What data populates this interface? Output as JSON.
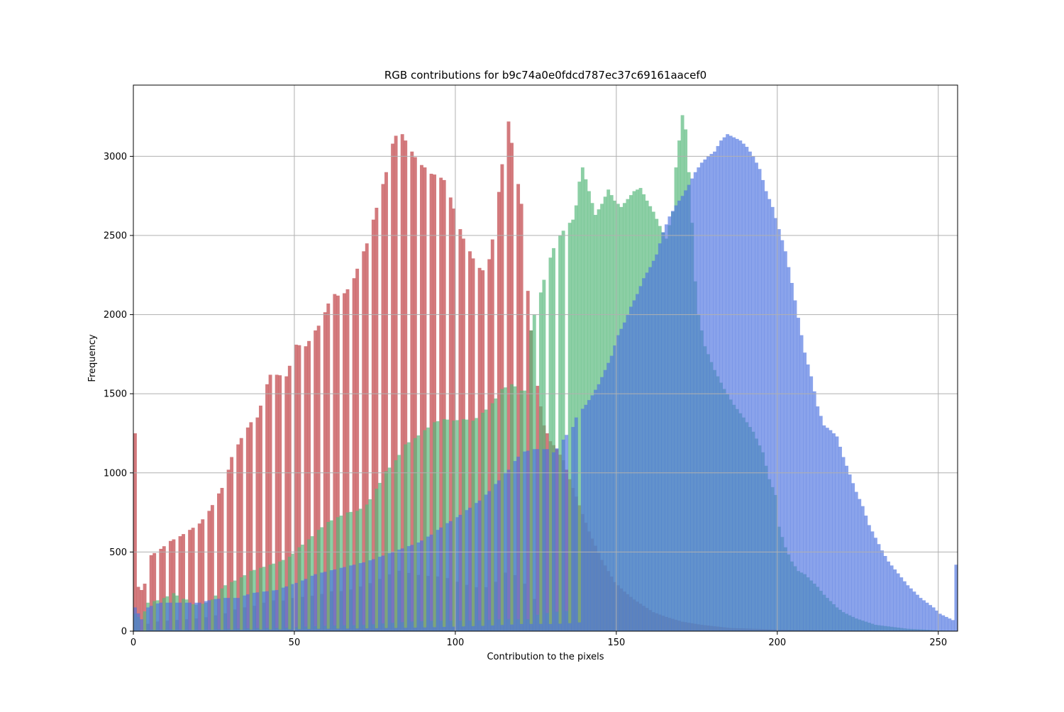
{
  "chart_data": {
    "type": "bar",
    "title": "RGB contributions for b9c74a0e0fdcd787ec37c69161aacef0",
    "xlabel": "Contribution to the pixels",
    "ylabel": "Frequency",
    "xlim": [
      0,
      256
    ],
    "ylim": [
      0,
      3450
    ],
    "xticks": [
      0,
      50,
      100,
      150,
      200,
      250
    ],
    "yticks": [
      0,
      500,
      1000,
      1500,
      2000,
      2500,
      3000
    ],
    "grid": true,
    "histogram_bins": 256,
    "series": [
      {
        "channel": "red",
        "color": "#c44e52",
        "opacity": 0.75,
        "anchors": [
          [
            0,
            1250
          ],
          [
            1,
            280
          ],
          [
            2,
            260
          ],
          [
            3,
            300
          ],
          [
            5,
            480
          ],
          [
            8,
            520
          ],
          [
            11,
            570
          ],
          [
            14,
            600
          ],
          [
            17,
            640
          ],
          [
            20,
            680
          ],
          [
            23,
            760
          ],
          [
            26,
            870
          ],
          [
            28,
            940
          ],
          [
            30,
            1100
          ],
          [
            33,
            1220
          ],
          [
            36,
            1320
          ],
          [
            38,
            1350
          ],
          [
            40,
            1500
          ],
          [
            42,
            1620
          ],
          [
            44,
            1620
          ],
          [
            47,
            1610
          ],
          [
            50,
            1810
          ],
          [
            53,
            1800
          ],
          [
            56,
            1900
          ],
          [
            58,
            1960
          ],
          [
            60,
            2070
          ],
          [
            62,
            2130
          ],
          [
            64,
            2110
          ],
          [
            66,
            2160
          ],
          [
            68,
            2230
          ],
          [
            70,
            2350
          ],
          [
            72,
            2450
          ],
          [
            74,
            2600
          ],
          [
            76,
            2750
          ],
          [
            78,
            2900
          ],
          [
            80,
            3080
          ],
          [
            82,
            3180
          ],
          [
            84,
            3100
          ],
          [
            86,
            3030
          ],
          [
            88,
            2960
          ],
          [
            90,
            2930
          ],
          [
            92,
            2890
          ],
          [
            94,
            2880
          ],
          [
            96,
            2850
          ],
          [
            98,
            2740
          ],
          [
            100,
            2600
          ],
          [
            102,
            2480
          ],
          [
            104,
            2400
          ],
          [
            106,
            2310
          ],
          [
            108,
            2280
          ],
          [
            110,
            2350
          ],
          [
            112,
            2600
          ],
          [
            114,
            2950
          ],
          [
            116,
            3220
          ],
          [
            118,
            2950
          ],
          [
            120,
            2700
          ],
          [
            121,
            2500
          ],
          [
            122,
            2150
          ],
          [
            123,
            1900
          ],
          [
            124,
            1700
          ],
          [
            125,
            1550
          ],
          [
            126,
            1420
          ],
          [
            127,
            1300
          ],
          [
            129,
            1200
          ],
          [
            131,
            1150
          ],
          [
            133,
            1080
          ],
          [
            135,
            960
          ],
          [
            137,
            850
          ],
          [
            139,
            740
          ],
          [
            141,
            630
          ],
          [
            143,
            540
          ],
          [
            145,
            450
          ],
          [
            147,
            380
          ],
          [
            149,
            310
          ],
          [
            152,
            250
          ],
          [
            155,
            200
          ],
          [
            158,
            160
          ],
          [
            161,
            120
          ],
          [
            165,
            90
          ],
          [
            170,
            60
          ],
          [
            176,
            40
          ],
          [
            185,
            20
          ],
          [
            200,
            10
          ],
          [
            220,
            5
          ],
          [
            255,
            3
          ]
        ],
        "comb": {
          "from": 4,
          "to": 125,
          "period": 3,
          "factor": 0.12
        }
      },
      {
        "channel": "green",
        "color": "#55b87b",
        "opacity": 0.68,
        "anchors": [
          [
            0,
            110
          ],
          [
            2,
            70
          ],
          [
            4,
            180
          ],
          [
            6,
            190
          ],
          [
            8,
            200
          ],
          [
            10,
            220
          ],
          [
            12,
            240
          ],
          [
            14,
            210
          ],
          [
            16,
            200
          ],
          [
            18,
            170
          ],
          [
            20,
            165
          ],
          [
            22,
            180
          ],
          [
            24,
            200
          ],
          [
            26,
            250
          ],
          [
            28,
            290
          ],
          [
            30,
            310
          ],
          [
            33,
            340
          ],
          [
            36,
            380
          ],
          [
            39,
            400
          ],
          [
            42,
            420
          ],
          [
            45,
            440
          ],
          [
            48,
            470
          ],
          [
            51,
            530
          ],
          [
            54,
            580
          ],
          [
            57,
            640
          ],
          [
            60,
            690
          ],
          [
            63,
            720
          ],
          [
            66,
            750
          ],
          [
            69,
            760
          ],
          [
            72,
            800
          ],
          [
            75,
            900
          ],
          [
            78,
            1010
          ],
          [
            81,
            1080
          ],
          [
            84,
            1180
          ],
          [
            87,
            1220
          ],
          [
            90,
            1270
          ],
          [
            93,
            1320
          ],
          [
            96,
            1340
          ],
          [
            99,
            1330
          ],
          [
            102,
            1340
          ],
          [
            105,
            1330
          ],
          [
            108,
            1380
          ],
          [
            111,
            1440
          ],
          [
            114,
            1530
          ],
          [
            117,
            1560
          ],
          [
            120,
            1520
          ],
          [
            122,
            1520
          ],
          [
            123,
            1900
          ],
          [
            124,
            2000
          ],
          [
            126,
            2140
          ],
          [
            128,
            2300
          ],
          [
            130,
            2420
          ],
          [
            132,
            2500
          ],
          [
            134,
            2560
          ],
          [
            136,
            2600
          ],
          [
            137,
            2690
          ],
          [
            138,
            2840
          ],
          [
            139,
            2930
          ],
          [
            141,
            2780
          ],
          [
            143,
            2630
          ],
          [
            145,
            2700
          ],
          [
            147,
            2790
          ],
          [
            149,
            2720
          ],
          [
            151,
            2680
          ],
          [
            153,
            2730
          ],
          [
            155,
            2780
          ],
          [
            157,
            2800
          ],
          [
            159,
            2720
          ],
          [
            161,
            2650
          ],
          [
            163,
            2560
          ],
          [
            165,
            2480
          ],
          [
            167,
            2650
          ],
          [
            168,
            2930
          ],
          [
            169,
            3100
          ],
          [
            170,
            3260
          ],
          [
            171,
            3170
          ],
          [
            172,
            2900
          ],
          [
            173,
            2580
          ],
          [
            174,
            2210
          ],
          [
            175,
            2000
          ],
          [
            177,
            1800
          ],
          [
            180,
            1650
          ],
          [
            183,
            1530
          ],
          [
            186,
            1430
          ],
          [
            189,
            1350
          ],
          [
            192,
            1260
          ],
          [
            195,
            1130
          ],
          [
            197,
            960
          ],
          [
            199,
            860
          ],
          [
            200,
            660
          ],
          [
            202,
            530
          ],
          [
            204,
            440
          ],
          [
            206,
            380
          ],
          [
            208,
            360
          ],
          [
            210,
            320
          ],
          [
            212,
            280
          ],
          [
            214,
            230
          ],
          [
            216,
            190
          ],
          [
            218,
            150
          ],
          [
            220,
            120
          ],
          [
            224,
            80
          ],
          [
            230,
            40
          ],
          [
            240,
            15
          ],
          [
            250,
            5
          ],
          [
            255,
            3
          ]
        ],
        "comb": {
          "from": 2,
          "to": 134,
          "period": 3,
          "factor": 0.05
        }
      },
      {
        "channel": "blue",
        "color": "#4c72e0",
        "opacity": 0.65,
        "anchors": [
          [
            0,
            150
          ],
          [
            2,
            75
          ],
          [
            4,
            150
          ],
          [
            6,
            170
          ],
          [
            8,
            180
          ],
          [
            12,
            180
          ],
          [
            16,
            180
          ],
          [
            20,
            180
          ],
          [
            24,
            200
          ],
          [
            28,
            210
          ],
          [
            32,
            210
          ],
          [
            36,
            240
          ],
          [
            40,
            250
          ],
          [
            44,
            260
          ],
          [
            48,
            290
          ],
          [
            52,
            320
          ],
          [
            56,
            360
          ],
          [
            60,
            380
          ],
          [
            64,
            400
          ],
          [
            68,
            420
          ],
          [
            72,
            440
          ],
          [
            76,
            470
          ],
          [
            80,
            500
          ],
          [
            84,
            530
          ],
          [
            88,
            560
          ],
          [
            92,
            610
          ],
          [
            96,
            670
          ],
          [
            100,
            720
          ],
          [
            104,
            780
          ],
          [
            108,
            840
          ],
          [
            112,
            930
          ],
          [
            116,
            1020
          ],
          [
            120,
            1130
          ],
          [
            124,
            1150
          ],
          [
            128,
            1150
          ],
          [
            130,
            1130
          ],
          [
            132,
            1180
          ],
          [
            134,
            1240
          ],
          [
            136,
            1290
          ],
          [
            137,
            1350
          ],
          [
            138,
            1380
          ],
          [
            140,
            1430
          ],
          [
            142,
            1490
          ],
          [
            144,
            1560
          ],
          [
            146,
            1650
          ],
          [
            148,
            1740
          ],
          [
            150,
            1870
          ],
          [
            152,
            1950
          ],
          [
            154,
            2050
          ],
          [
            156,
            2130
          ],
          [
            158,
            2230
          ],
          [
            160,
            2300
          ],
          [
            162,
            2380
          ],
          [
            164,
            2520
          ],
          [
            166,
            2620
          ],
          [
            168,
            2690
          ],
          [
            170,
            2750
          ],
          [
            172,
            2820
          ],
          [
            174,
            2900
          ],
          [
            176,
            2960
          ],
          [
            178,
            3000
          ],
          [
            180,
            3030
          ],
          [
            182,
            3100
          ],
          [
            184,
            3140
          ],
          [
            186,
            3120
          ],
          [
            188,
            3100
          ],
          [
            190,
            3060
          ],
          [
            192,
            3000
          ],
          [
            194,
            2920
          ],
          [
            196,
            2780
          ],
          [
            198,
            2680
          ],
          [
            200,
            2540
          ],
          [
            202,
            2400
          ],
          [
            204,
            2200
          ],
          [
            206,
            1980
          ],
          [
            208,
            1760
          ],
          [
            210,
            1610
          ],
          [
            212,
            1420
          ],
          [
            214,
            1300
          ],
          [
            216,
            1270
          ],
          [
            218,
            1230
          ],
          [
            220,
            1100
          ],
          [
            222,
            990
          ],
          [
            224,
            880
          ],
          [
            226,
            790
          ],
          [
            228,
            670
          ],
          [
            230,
            590
          ],
          [
            232,
            510
          ],
          [
            234,
            440
          ],
          [
            236,
            390
          ],
          [
            238,
            340
          ],
          [
            240,
            290
          ],
          [
            242,
            250
          ],
          [
            244,
            210
          ],
          [
            246,
            180
          ],
          [
            248,
            150
          ],
          [
            250,
            110
          ],
          [
            252,
            90
          ],
          [
            253,
            80
          ],
          [
            254,
            70
          ],
          [
            255,
            420
          ]
        ],
        "comb": {
          "from": 3,
          "to": 140,
          "period": 3,
          "factor": 0.04
        }
      }
    ]
  }
}
